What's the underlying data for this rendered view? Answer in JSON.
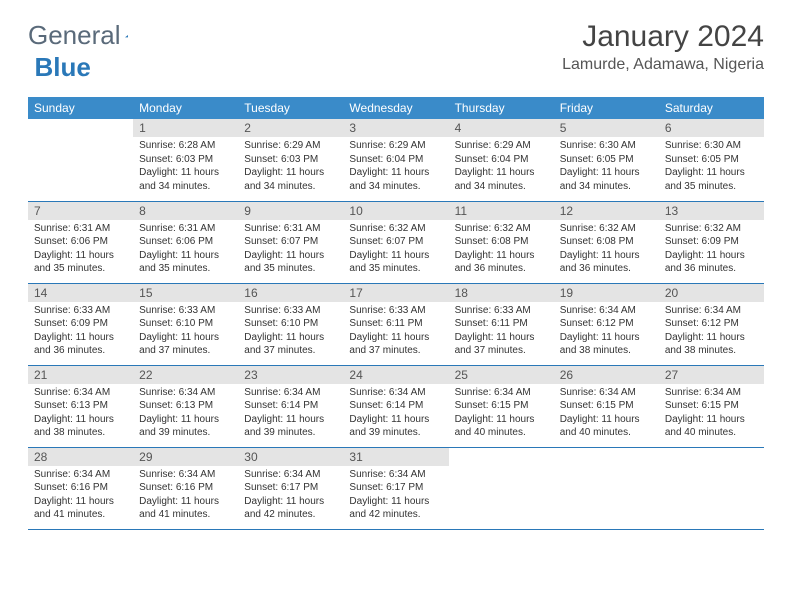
{
  "brand": {
    "part1": "General",
    "part2": "Blue"
  },
  "title": "January 2024",
  "location": "Lamurde, Adamawa, Nigeria",
  "colors": {
    "header_bg": "#3a8bc9",
    "header_text": "#ffffff",
    "daynum_bg": "#e4e4e4",
    "border": "#2a78b8",
    "logo_gray": "#5a6a7a",
    "logo_blue": "#2a78b8"
  },
  "typography": {
    "month_fontsize": 30,
    "location_fontsize": 16,
    "weekday_fontsize": 12,
    "daynum_fontsize": 12,
    "body_fontsize": 10
  },
  "weekdays": [
    "Sunday",
    "Monday",
    "Tuesday",
    "Wednesday",
    "Thursday",
    "Friday",
    "Saturday"
  ],
  "layout": {
    "start_offset": 1,
    "num_days": 31
  },
  "days": [
    {
      "n": 1,
      "sr": "6:28 AM",
      "ss": "6:03 PM",
      "dl": "11 hours and 34 minutes."
    },
    {
      "n": 2,
      "sr": "6:29 AM",
      "ss": "6:03 PM",
      "dl": "11 hours and 34 minutes."
    },
    {
      "n": 3,
      "sr": "6:29 AM",
      "ss": "6:04 PM",
      "dl": "11 hours and 34 minutes."
    },
    {
      "n": 4,
      "sr": "6:29 AM",
      "ss": "6:04 PM",
      "dl": "11 hours and 34 minutes."
    },
    {
      "n": 5,
      "sr": "6:30 AM",
      "ss": "6:05 PM",
      "dl": "11 hours and 34 minutes."
    },
    {
      "n": 6,
      "sr": "6:30 AM",
      "ss": "6:05 PM",
      "dl": "11 hours and 35 minutes."
    },
    {
      "n": 7,
      "sr": "6:31 AM",
      "ss": "6:06 PM",
      "dl": "11 hours and 35 minutes."
    },
    {
      "n": 8,
      "sr": "6:31 AM",
      "ss": "6:06 PM",
      "dl": "11 hours and 35 minutes."
    },
    {
      "n": 9,
      "sr": "6:31 AM",
      "ss": "6:07 PM",
      "dl": "11 hours and 35 minutes."
    },
    {
      "n": 10,
      "sr": "6:32 AM",
      "ss": "6:07 PM",
      "dl": "11 hours and 35 minutes."
    },
    {
      "n": 11,
      "sr": "6:32 AM",
      "ss": "6:08 PM",
      "dl": "11 hours and 36 minutes."
    },
    {
      "n": 12,
      "sr": "6:32 AM",
      "ss": "6:08 PM",
      "dl": "11 hours and 36 minutes."
    },
    {
      "n": 13,
      "sr": "6:32 AM",
      "ss": "6:09 PM",
      "dl": "11 hours and 36 minutes."
    },
    {
      "n": 14,
      "sr": "6:33 AM",
      "ss": "6:09 PM",
      "dl": "11 hours and 36 minutes."
    },
    {
      "n": 15,
      "sr": "6:33 AM",
      "ss": "6:10 PM",
      "dl": "11 hours and 37 minutes."
    },
    {
      "n": 16,
      "sr": "6:33 AM",
      "ss": "6:10 PM",
      "dl": "11 hours and 37 minutes."
    },
    {
      "n": 17,
      "sr": "6:33 AM",
      "ss": "6:11 PM",
      "dl": "11 hours and 37 minutes."
    },
    {
      "n": 18,
      "sr": "6:33 AM",
      "ss": "6:11 PM",
      "dl": "11 hours and 37 minutes."
    },
    {
      "n": 19,
      "sr": "6:34 AM",
      "ss": "6:12 PM",
      "dl": "11 hours and 38 minutes."
    },
    {
      "n": 20,
      "sr": "6:34 AM",
      "ss": "6:12 PM",
      "dl": "11 hours and 38 minutes."
    },
    {
      "n": 21,
      "sr": "6:34 AM",
      "ss": "6:13 PM",
      "dl": "11 hours and 38 minutes."
    },
    {
      "n": 22,
      "sr": "6:34 AM",
      "ss": "6:13 PM",
      "dl": "11 hours and 39 minutes."
    },
    {
      "n": 23,
      "sr": "6:34 AM",
      "ss": "6:14 PM",
      "dl": "11 hours and 39 minutes."
    },
    {
      "n": 24,
      "sr": "6:34 AM",
      "ss": "6:14 PM",
      "dl": "11 hours and 39 minutes."
    },
    {
      "n": 25,
      "sr": "6:34 AM",
      "ss": "6:15 PM",
      "dl": "11 hours and 40 minutes."
    },
    {
      "n": 26,
      "sr": "6:34 AM",
      "ss": "6:15 PM",
      "dl": "11 hours and 40 minutes."
    },
    {
      "n": 27,
      "sr": "6:34 AM",
      "ss": "6:15 PM",
      "dl": "11 hours and 40 minutes."
    },
    {
      "n": 28,
      "sr": "6:34 AM",
      "ss": "6:16 PM",
      "dl": "11 hours and 41 minutes."
    },
    {
      "n": 29,
      "sr": "6:34 AM",
      "ss": "6:16 PM",
      "dl": "11 hours and 41 minutes."
    },
    {
      "n": 30,
      "sr": "6:34 AM",
      "ss": "6:17 PM",
      "dl": "11 hours and 42 minutes."
    },
    {
      "n": 31,
      "sr": "6:34 AM",
      "ss": "6:17 PM",
      "dl": "11 hours and 42 minutes."
    }
  ],
  "labels": {
    "sunrise": "Sunrise:",
    "sunset": "Sunset:",
    "daylight": "Daylight:"
  }
}
